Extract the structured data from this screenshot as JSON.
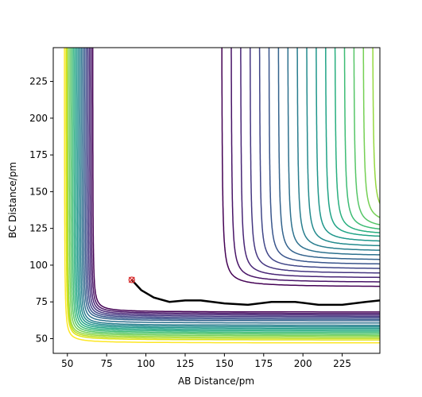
{
  "chart_data": {
    "type": "contour",
    "xlabel": "AB Distance/pm",
    "ylabel": "BC Distance/pm",
    "xlim": [
      41,
      249
    ],
    "ylim": [
      40,
      248
    ],
    "xticks": [
      50,
      75,
      100,
      125,
      150,
      175,
      200,
      225
    ],
    "yticks": [
      50,
      75,
      100,
      125,
      150,
      175,
      200,
      225
    ],
    "contours": {
      "colors": [
        "#440154",
        "#481467",
        "#482576",
        "#453781",
        "#404688",
        "#39558c",
        "#33638d",
        "#2d718e",
        "#287d8e",
        "#238a8d",
        "#1f968b",
        "#20a386",
        "#29af7f",
        "#3dbc74",
        "#56c667",
        "#75d054",
        "#95d840",
        "#bade28",
        "#dde318",
        "#fde725"
      ],
      "wall_x": [
        66,
        65,
        64,
        63,
        62,
        61,
        60,
        59,
        58,
        57,
        56,
        55,
        54,
        53,
        52,
        51,
        50,
        49.5,
        49,
        48
      ],
      "wall_y": [
        68,
        67,
        66,
        65,
        64,
        63,
        62,
        60.5,
        59,
        58,
        57,
        56,
        55,
        54,
        53,
        52,
        51,
        50,
        49,
        47
      ],
      "plateau_x": [
        148,
        154,
        160,
        166,
        172,
        178,
        184,
        190,
        196,
        202,
        208,
        214,
        220,
        226,
        232,
        238,
        244,
        250,
        256,
        262
      ],
      "plateau_y": [
        85,
        88,
        91,
        94,
        97,
        100,
        103,
        106,
        109,
        112,
        115,
        118,
        120,
        122,
        124,
        127,
        130,
        133,
        136,
        138
      ]
    },
    "trajectory": {
      "color": "#000000",
      "x": [
        91,
        97,
        105,
        115,
        125,
        135,
        150,
        165,
        180,
        195,
        210,
        225,
        240,
        249
      ],
      "y": [
        90,
        83,
        78,
        75,
        76,
        76,
        74,
        73,
        75,
        75,
        73,
        73,
        75,
        76
      ]
    },
    "start": {
      "x": 91,
      "y": 90,
      "color": "#d62728"
    }
  }
}
